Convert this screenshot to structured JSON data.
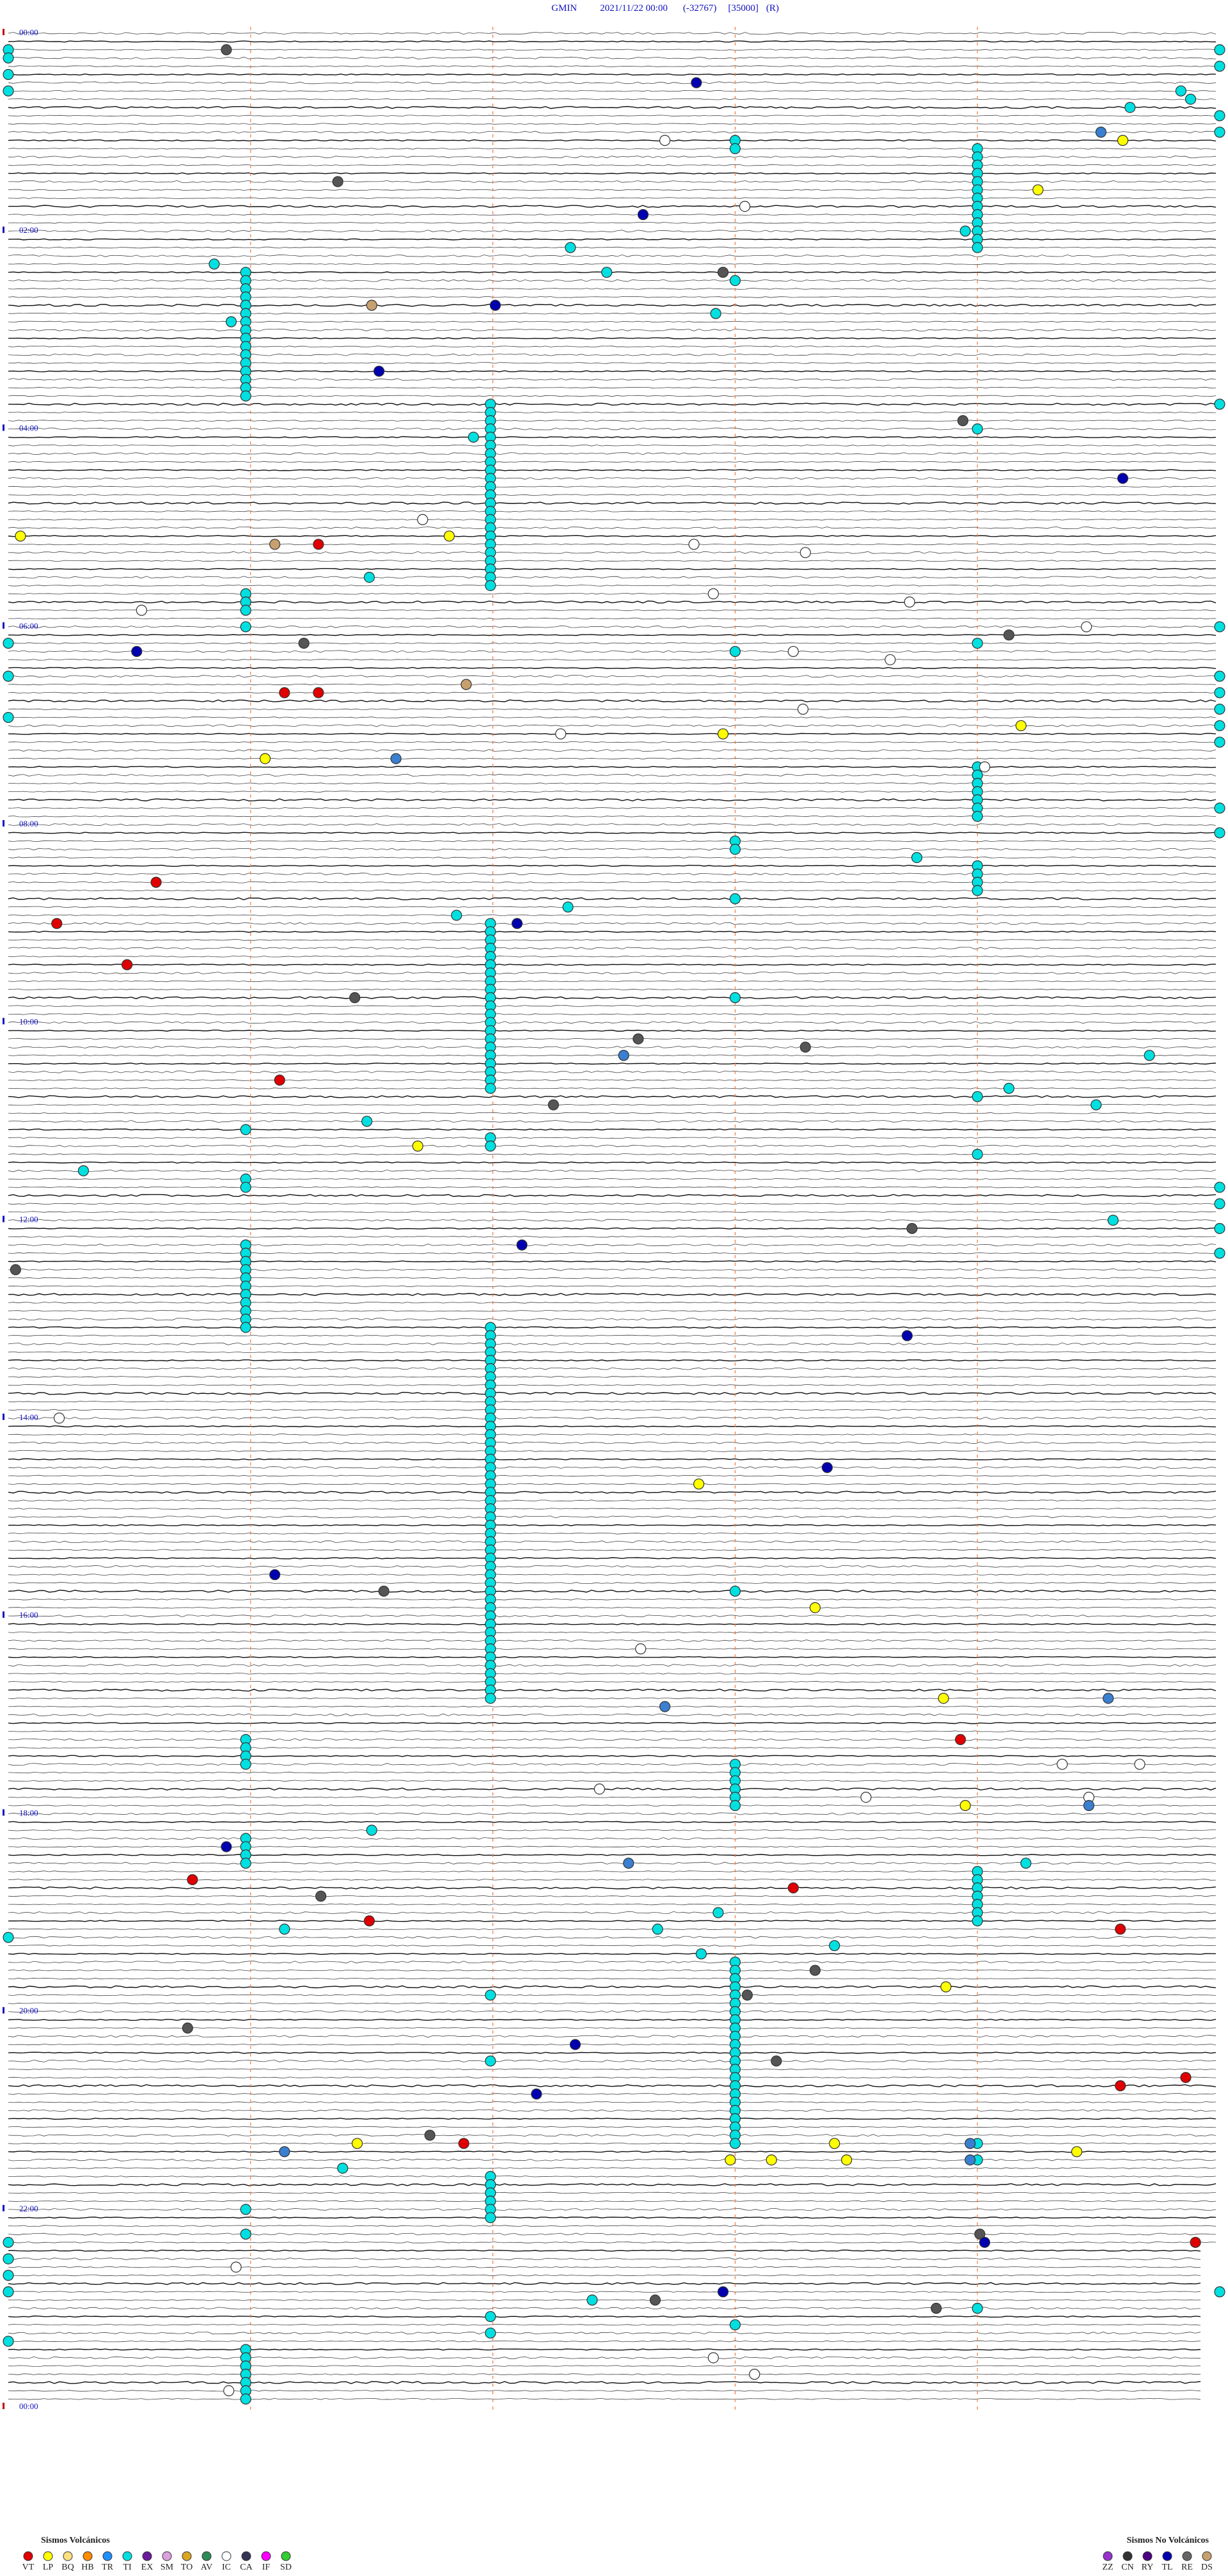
{
  "header": {
    "station": "GMIN",
    "datetime": "2021/11/22 00:00",
    "clip": "(-32767)",
    "scale": "[35000]",
    "mode": "(R)"
  },
  "hour_labels": [
    "00:00",
    "02:00",
    "04:00",
    "06:00",
    "08:00",
    "10:00",
    "12:00",
    "14:00",
    "16:00",
    "18:00",
    "20:00",
    "22:00",
    "00:00"
  ],
  "events": [
    {
      "color": "#00e0e0",
      "rows": [
        29,
        30,
        31,
        32,
        33,
        34,
        35,
        36,
        37,
        38,
        39,
        40,
        41,
        42,
        43,
        44,
        68,
        69,
        70,
        72,
        139,
        140,
        147,
        148,
        149,
        150,
        151,
        152,
        153,
        154,
        155,
        156,
        157,
        207,
        208,
        209,
        210,
        219,
        220,
        221,
        222,
        264,
        267,
        281,
        282,
        283,
        284,
        285,
        286,
        287
      ],
      "minutes": [
        0.98,
        0.98,
        0.98,
        0.98,
        0.98,
        0.98,
        0.98,
        0.98,
        0.98,
        0.98,
        0.98,
        0.98,
        0.98,
        0.98,
        0.98,
        0.98,
        0.98,
        0.98,
        0.98,
        0.98,
        0.98,
        0.98,
        0.98,
        0.98,
        0.98,
        0.98,
        0.98,
        0.98,
        0.98,
        0.98,
        0.98,
        0.98,
        0.98,
        0.98,
        0.98,
        0.98,
        0.98,
        0.98,
        0.98,
        0.98,
        0.98,
        0.98,
        0.98,
        0.98,
        0.98,
        0.98,
        0.98,
        0.98,
        0.98,
        0.98
      ]
    },
    {
      "color": "#00e0e0",
      "rows": [
        45,
        46,
        47,
        48,
        49,
        50,
        51,
        52,
        53,
        54,
        55,
        56,
        57,
        58,
        59,
        60,
        61,
        62,
        63,
        64,
        65,
        66,
        67,
        108,
        109,
        110,
        111,
        112,
        113,
        114,
        115,
        116,
        117,
        118,
        119,
        120,
        121,
        122,
        123,
        124,
        125,
        126,
        127,
        128,
        134,
        135,
        157,
        158,
        159,
        160,
        161,
        162,
        163,
        164,
        165,
        166,
        167,
        168,
        169,
        170,
        171,
        172,
        173,
        174,
        175,
        176,
        177,
        178,
        179,
        180,
        181,
        182,
        183,
        184,
        185,
        186,
        187,
        188,
        189,
        190,
        191,
        192,
        193,
        194,
        195,
        196,
        197,
        198,
        199,
        200,
        201,
        202,
        238,
        246,
        260,
        261,
        262,
        263,
        264,
        265,
        277,
        279
      ],
      "minutes": [
        1.99,
        1.99,
        1.99,
        1.99,
        1.99,
        1.99,
        1.99,
        1.99,
        1.99,
        1.99,
        1.99,
        1.99,
        1.99,
        1.99,
        1.99,
        1.99,
        1.99,
        1.99,
        1.99,
        1.99,
        1.99,
        1.99,
        1.99,
        1.99,
        1.99,
        1.99,
        1.99,
        1.99,
        1.99,
        1.99,
        1.99,
        1.99,
        1.99,
        1.99,
        1.99,
        1.99,
        1.99,
        1.99,
        1.99,
        1.99,
        1.99,
        1.99,
        1.99,
        1.99,
        1.99,
        1.99,
        1.99,
        1.99,
        1.99,
        1.99,
        1.99,
        1.99,
        1.99,
        1.99,
        1.99,
        1.99,
        1.99,
        1.99,
        1.99,
        1.99,
        1.99,
        1.99,
        1.99,
        1.99,
        1.99,
        1.99,
        1.99,
        1.99,
        1.99,
        1.99,
        1.99,
        1.99,
        1.99,
        1.99,
        1.99,
        1.99,
        1.99,
        1.99,
        1.99,
        1.99,
        1.99,
        1.99,
        1.99,
        1.99,
        1.99,
        1.99,
        1.99,
        1.99,
        1.99,
        1.99,
        1.99,
        1.99,
        1.99,
        1.99,
        1.99,
        1.99,
        1.99,
        1.99,
        1.99,
        1.99,
        1.99,
        1.99
      ]
    },
    {
      "color": "#00e0e0",
      "rows": [
        13,
        14,
        30,
        75,
        98,
        99,
        105,
        117,
        189,
        210,
        211,
        212,
        213,
        214,
        215,
        234,
        235,
        236,
        237,
        238,
        239,
        240,
        241,
        242,
        243,
        244,
        245,
        246,
        247,
        248,
        249,
        250,
        251,
        252,
        253,
        254,
        255,
        256,
        278
      ],
      "minutes": [
        3.0,
        3.0,
        3.0,
        3.0,
        3.0,
        3.0,
        3.0,
        3.0,
        3.0,
        3.0,
        3.0,
        3.0,
        3.0,
        3.0,
        3.0,
        3.0,
        3.0,
        3.0,
        3.0,
        3.0,
        3.0,
        3.0,
        3.0,
        3.0,
        3.0,
        3.0,
        3.0,
        3.0,
        3.0,
        3.0,
        3.0,
        3.0,
        3.0,
        3.0,
        3.0,
        3.0,
        3.0,
        3.0,
        3.0
      ]
    },
    {
      "color": "#00e0e0",
      "rows": [
        14,
        15,
        16,
        17,
        18,
        19,
        20,
        21,
        22,
        23,
        24,
        25,
        26,
        48,
        74,
        89,
        90,
        91,
        92,
        93,
        94,
        95,
        101,
        102,
        103,
        104,
        129,
        136,
        223,
        224,
        225,
        226,
        227,
        228,
        229,
        256,
        258,
        276
      ],
      "minutes": [
        4.0,
        4.0,
        4.0,
        4.0,
        4.0,
        4.0,
        4.0,
        4.0,
        4.0,
        4.0,
        4.0,
        4.0,
        4.0,
        4.0,
        4.0,
        4.0,
        4.0,
        4.0,
        4.0,
        4.0,
        4.0,
        4.0,
        4.0,
        4.0,
        4.0,
        4.0,
        4.0,
        4.0,
        4.0,
        4.0,
        4.0,
        4.0,
        4.0,
        4.0,
        4.0,
        4.0,
        4.0,
        4.0
      ]
    },
    {
      "color": "#00e0e0",
      "rows": [
        2,
        4,
        10,
        12,
        45,
        72,
        78,
        80,
        82,
        84,
        86,
        94,
        97,
        140,
        142,
        145,
        148,
        274,
        2,
        3,
        5,
        7,
        74,
        78,
        83,
        231,
        268,
        270,
        272,
        274,
        280
      ],
      "minutes": [
        5.0,
        5.0,
        5.0,
        5.0,
        5.0,
        5.0,
        5.0,
        5.0,
        5.0,
        5.0,
        5.0,
        5.0,
        5.0,
        5.0,
        5.0,
        5.0,
        5.0,
        5.0,
        0.0,
        0.0,
        0.0,
        0.0,
        0.0,
        0.0,
        0.0,
        0.0,
        0.0,
        0.0,
        0.0,
        0.0,
        0.0
      ]
    },
    {
      "color": "#00e0e0",
      "rows": [
        7,
        8,
        9,
        24,
        26,
        28,
        29,
        34,
        35,
        49,
        66,
        100,
        106,
        107,
        124,
        128,
        130,
        133,
        132,
        138,
        144,
        218,
        222,
        230,
        228,
        230,
        233,
        232,
        259,
        275
      ],
      "minutes": [
        4.84,
        4.88,
        4.63,
        3.95,
        2.32,
        0.85,
        2.47,
        2.92,
        0.92,
        1.92,
        1.49,
        3.75,
        2.31,
        1.85,
        4.71,
        4.13,
        4.49,
        0.98,
        1.48,
        0.31,
        4.56,
        1.5,
        4.2,
        1.14,
        2.93,
        2.68,
        2.86,
        3.41,
        1.38,
        2.41
      ]
    },
    {
      "color": "#555555",
      "rows": [
        2,
        18,
        29,
        47,
        74,
        73,
        122,
        123,
        117,
        130,
        145,
        150,
        189,
        226,
        238,
        235,
        242,
        246,
        255,
        267,
        275,
        276
      ],
      "minutes": [
        0.9,
        1.36,
        2.95,
        3.94,
        1.22,
        4.13,
        2.6,
        3.29,
        1.43,
        2.25,
        3.73,
        0.03,
        1.55,
        1.29,
        3.05,
        3.33,
        0.74,
        3.17,
        1.74,
        4.01,
        2.67,
        3.83
      ]
    },
    {
      "color": "#0000b0",
      "rows": [
        6,
        22,
        33,
        41,
        54,
        75,
        108,
        147,
        158,
        174,
        187,
        220,
        244,
        250,
        268,
        274
      ],
      "minutes": [
        2.84,
        2.62,
        2.01,
        1.53,
        4.6,
        0.53,
        2.1,
        2.12,
        3.71,
        3.38,
        1.1,
        0.9,
        2.34,
        2.18,
        4.03,
        2.95
      ]
    },
    {
      "color": "#ffffff",
      "rows": [
        13,
        21,
        59,
        62,
        63,
        70,
        68,
        69,
        72,
        75,
        76,
        82,
        85,
        89,
        168,
        196,
        210,
        210,
        213,
        214,
        214,
        271,
        282,
        284,
        286
      ],
      "minutes": [
        2.71,
        3.04,
        1.71,
        2.83,
        3.29,
        0.55,
        2.91,
        3.72,
        4.45,
        3.24,
        3.64,
        3.28,
        2.28,
        4.03,
        0.21,
        2.61,
        4.35,
        4.67,
        2.44,
        3.54,
        4.46,
        0.94,
        2.91,
        3.08,
        0.91
      ]
    },
    {
      "color": "#c8a070",
      "rows": [
        33,
        62,
        79
      ],
      "minutes": [
        1.5,
        1.1,
        1.89
      ]
    },
    {
      "color": "#e00000",
      "rows": [
        62,
        80,
        80,
        103,
        108,
        113,
        127,
        207,
        224,
        225,
        229,
        230,
        249,
        248,
        256,
        268
      ],
      "minutes": [
        1.28,
        1.14,
        1.28,
        0.61,
        0.2,
        0.49,
        1.12,
        3.93,
        0.76,
        3.24,
        1.49,
        4.59,
        4.59,
        4.86,
        1.88,
        4.9
      ]
    },
    {
      "color": "#ffff00",
      "rows": [
        13,
        19,
        61,
        61,
        84,
        88,
        85,
        135,
        176,
        191,
        202,
        215,
        237,
        256,
        256,
        257,
        258,
        258,
        258
      ],
      "minutes": [
        4.6,
        4.25,
        0.05,
        1.82,
        4.18,
        1.06,
        2.95,
        1.69,
        2.85,
        3.33,
        3.86,
        3.95,
        3.87,
        1.44,
        3.41,
        4.41,
        2.98,
        3.15,
        3.46
      ]
    },
    {
      "color": "#3a7fd0",
      "rows": [
        12,
        88,
        124,
        203,
        202,
        215,
        222,
        257,
        256,
        258
      ],
      "minutes": [
        4.51,
        1.6,
        2.54,
        2.71,
        4.54,
        4.46,
        2.56,
        1.14,
        3.97,
        3.97
      ]
    }
  ],
  "legend": {
    "volcanic": {
      "title": "Sismos Volcánicos",
      "items": [
        {
          "name": "VT",
          "color": "#e00000"
        },
        {
          "name": "LP",
          "color": "#ffff00"
        },
        {
          "name": "BQ",
          "color": "#ffe080"
        },
        {
          "name": "HB",
          "color": "#ff8c00"
        },
        {
          "name": "TR",
          "color": "#1e90ff"
        },
        {
          "name": "TI",
          "color": "#00e0e0"
        },
        {
          "name": "EX",
          "color": "#6a1b9a"
        },
        {
          "name": "SM",
          "color": "#dda0dd"
        },
        {
          "name": "TO",
          "color": "#daa520"
        },
        {
          "name": "AV",
          "color": "#2e8b57"
        },
        {
          "name": "IC",
          "color": "#ffffff"
        },
        {
          "name": "CA",
          "color": "#333355"
        },
        {
          "name": "IF",
          "color": "#ff00ff"
        },
        {
          "name": "SD",
          "color": "#33cc33"
        }
      ]
    },
    "non_volcanic": {
      "title": "Sismos No Volcánicos",
      "items": [
        {
          "name": "ZZ",
          "color": "#9932cc"
        },
        {
          "name": "CN",
          "color": "#333333"
        },
        {
          "name": "RY",
          "color": "#4b0082"
        },
        {
          "name": "TL",
          "color": "#0000b0"
        },
        {
          "name": "RE",
          "color": "#666666"
        },
        {
          "name": "DS",
          "color": "#c8a070"
        }
      ]
    }
  }
}
